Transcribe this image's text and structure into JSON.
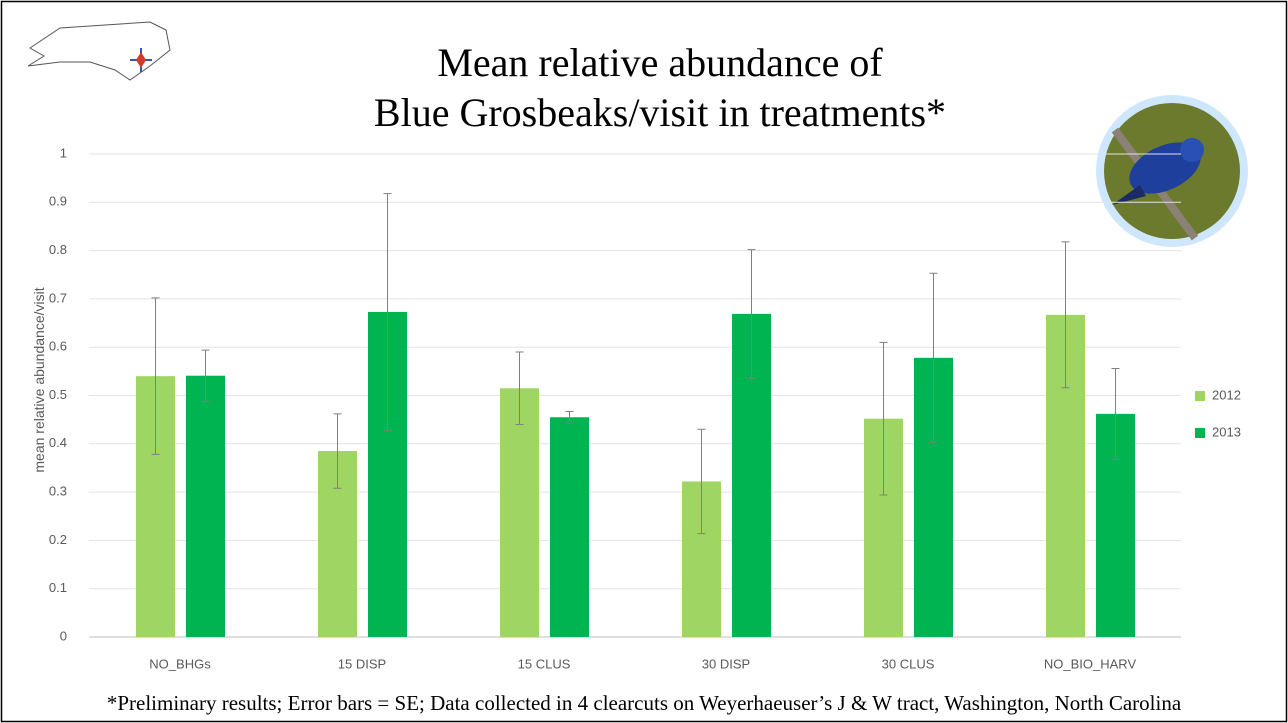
{
  "chart_data": {
    "type": "bar",
    "title": [
      "Mean relative abundance of",
      "Blue Grosbeaks/visit in treatments*"
    ],
    "y_label": "mean relative abundance/visit",
    "categories": [
      "NO_BHGs",
      "15 DISP",
      "15 CLUS",
      "30 DISP",
      "30 CLUS",
      "NO_BIO_HARV"
    ],
    "series": [
      {
        "name": "2012",
        "color": "#9fd563",
        "values": [
          0.54,
          0.385,
          0.515,
          0.322,
          0.452,
          0.667
        ],
        "errors": [
          0.162,
          0.077,
          0.075,
          0.108,
          0.158,
          0.151
        ]
      },
      {
        "name": "2013",
        "color": "#00b451",
        "values": [
          0.541,
          0.673,
          0.455,
          0.669,
          0.578,
          0.462
        ],
        "errors": [
          0.053,
          0.245,
          0.012,
          0.133,
          0.175,
          0.094
        ]
      }
    ],
    "ylim": [
      0,
      1
    ],
    "yticks": [
      0,
      0.1,
      0.2,
      0.3,
      0.4,
      0.5,
      0.6,
      0.7,
      0.8,
      0.9,
      1
    ],
    "grid": true,
    "legend": "right",
    "footnote": "*Preliminary results; Error bars = SE; Data collected in 4 clearcuts on Weyerhaeuser’s J & W tract, Washington, North Carolina"
  }
}
